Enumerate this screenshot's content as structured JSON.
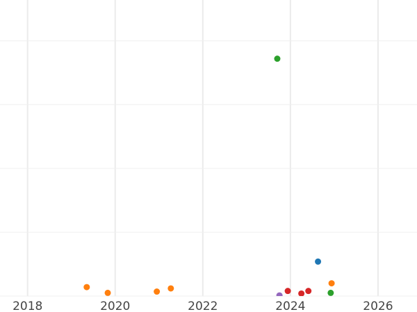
{
  "chart_data": {
    "type": "scatter",
    "title": "",
    "xlabel": "",
    "ylabel": "",
    "xlim": [
      2017.37,
      2026.89
    ],
    "ylim": [
      0,
      4.64
    ],
    "x_ticks": [
      "2018",
      "2020",
      "2022",
      "2024",
      "2026"
    ],
    "x_tick_values": [
      2018,
      2020,
      2022,
      2024,
      2026
    ],
    "y_gridlines": [
      0,
      1,
      2,
      3,
      4
    ],
    "grid": true,
    "points": [
      {
        "x": 2023.7,
        "y": 3.72,
        "color": "#2ca02c"
      },
      {
        "x": 2024.63,
        "y": 0.54,
        "color": "#1f77b4"
      },
      {
        "x": 2024.94,
        "y": 0.2,
        "color": "#ff7f0e"
      },
      {
        "x": 2024.92,
        "y": 0.05,
        "color": "#2ca02c"
      },
      {
        "x": 2023.94,
        "y": 0.08,
        "color": "#d62728"
      },
      {
        "x": 2024.25,
        "y": 0.04,
        "color": "#d62728"
      },
      {
        "x": 2024.41,
        "y": 0.08,
        "color": "#d62728"
      },
      {
        "x": 2023.75,
        "y": 0.01,
        "color": "#9467bd"
      },
      {
        "x": 2019.35,
        "y": 0.14,
        "color": "#ff7f0e"
      },
      {
        "x": 2019.83,
        "y": 0.05,
        "color": "#ff7f0e"
      },
      {
        "x": 2020.95,
        "y": 0.07,
        "color": "#ff7f0e"
      },
      {
        "x": 2021.27,
        "y": 0.12,
        "color": "#ff7f0e"
      }
    ]
  }
}
